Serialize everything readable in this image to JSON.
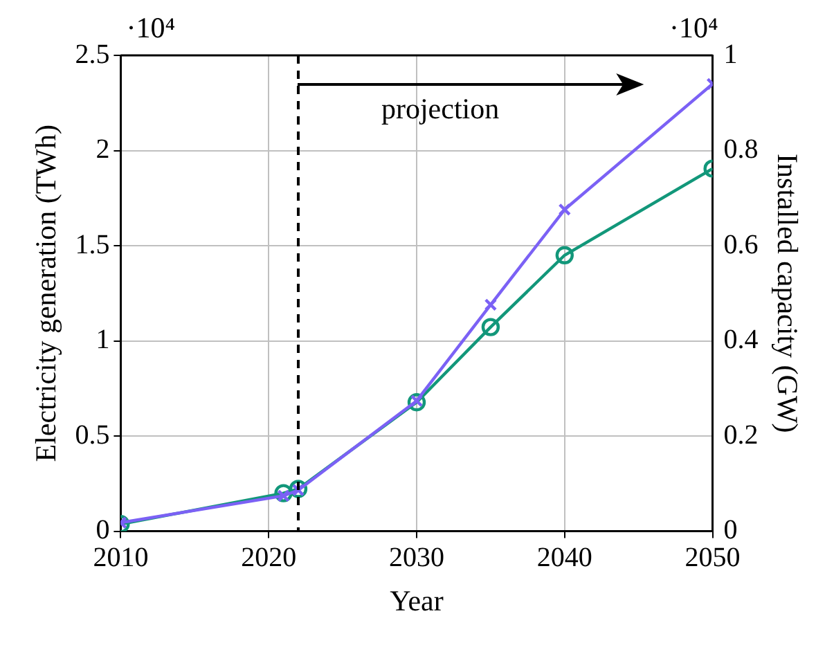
{
  "chart_data": {
    "type": "line",
    "xlabel": "Year",
    "ylabel": "Electricity generation (TWh)",
    "y2label": "Installed capacity (GW)",
    "xlim": [
      2010,
      2050
    ],
    "xticks": [
      2010,
      2020,
      2030,
      2040,
      2050
    ],
    "ylim": [
      0,
      2.5
    ],
    "yticks": [
      0,
      0.5,
      1,
      1.5,
      2,
      2.5
    ],
    "y2lim": [
      0,
      1
    ],
    "y2ticks": [
      0,
      0.2,
      0.4,
      0.6,
      0.8,
      1
    ],
    "grid": true,
    "legend": false,
    "line_style": "solid",
    "series": [
      {
        "color": "#7b61f5",
        "marker": "cross",
        "x": [
          2010,
          2021,
          2022,
          2030,
          2035,
          2040,
          2050
        ],
        "values": [
          0.045,
          0.186,
          0.216,
          0.685,
          1.19,
          1.69,
          2.35
        ]
      },
      {
        "color": "#12977a",
        "marker": "circle",
        "axis": "y2",
        "x": [
          2010,
          2021,
          2022,
          2030,
          2035,
          2040,
          2050
        ],
        "values": [
          0.015,
          0.08,
          0.089,
          0.271,
          0.429,
          0.58,
          0.762
        ]
      }
    ],
    "ref_lines": [
      {
        "axis": "x",
        "value": 2022,
        "label": "projection",
        "color": "#000000",
        "line_style": "dashed"
      }
    ],
    "annotations": [
      "·10⁴",
      "·10⁴"
    ]
  }
}
